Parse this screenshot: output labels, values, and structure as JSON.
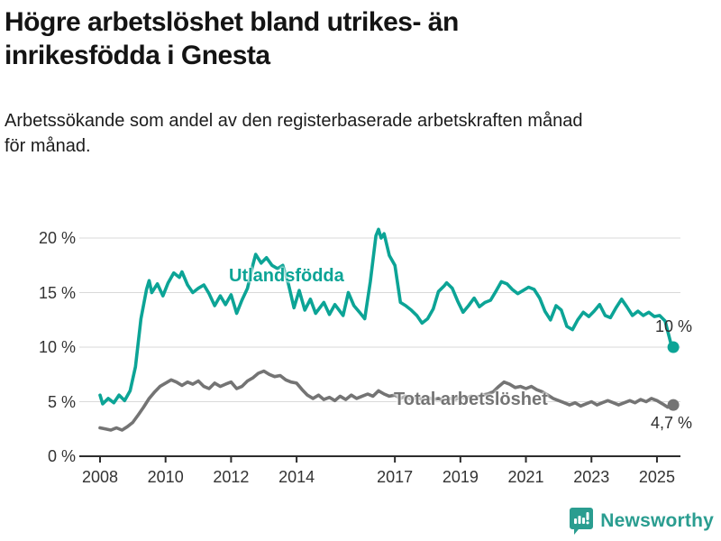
{
  "header": {
    "title_line1": "Högre arbetslöshet bland utrikes- än",
    "title_line2": "inrikesfödda i Gnesta",
    "subtitle_line1": "Arbetssökande som andel av den registerbaserade arbetskraften månad",
    "subtitle_line2": "för månad."
  },
  "footer": {
    "brand": "Newsworthy",
    "brand_color": "#2a9d90"
  },
  "chart_data": {
    "type": "line",
    "title": "Högre arbetslöshet bland utrikes- än inrikesfödda i Gnesta",
    "subtitle": "Arbetssökande som andel av den registerbaserade arbetskraften månad för månad.",
    "x_unit": "year (monthly series)",
    "y_unit": "percent",
    "xlim": [
      2007.4,
      2025.75
    ],
    "ylim": [
      0,
      21.5
    ],
    "grid": true,
    "legend_position": "inline labels on lines",
    "grid_color": "#d9d9d9",
    "axis_color": "#2d2d2d",
    "tick_label_color": "#333333",
    "yticks": [
      {
        "value": 0,
        "label": "0 %"
      },
      {
        "value": 5,
        "label": "5 %"
      },
      {
        "value": 10,
        "label": "10 %"
      },
      {
        "value": 15,
        "label": "15 %"
      },
      {
        "value": 20,
        "label": "20 %"
      }
    ],
    "xticks": [
      {
        "year": 2008,
        "label": "2008"
      },
      {
        "year": 2010,
        "label": "2010"
      },
      {
        "year": 2012,
        "label": "2012"
      },
      {
        "year": 2014,
        "label": "2014"
      },
      {
        "year": 2017,
        "label": "2017"
      },
      {
        "year": 2019,
        "label": "2019"
      },
      {
        "year": 2021,
        "label": "2021"
      },
      {
        "year": 2023,
        "label": "2023"
      },
      {
        "year": 2025,
        "label": "2025"
      }
    ],
    "series": [
      {
        "name": "Utlandsfödda",
        "color": "#0ca496",
        "end_label": "10 %",
        "end_value": 10.0,
        "points": [
          [
            2008.0,
            5.6
          ],
          [
            2008.08,
            4.8
          ],
          [
            2008.25,
            5.3
          ],
          [
            2008.42,
            4.9
          ],
          [
            2008.58,
            5.6
          ],
          [
            2008.75,
            5.1
          ],
          [
            2008.92,
            6.0
          ],
          [
            2009.08,
            8.2
          ],
          [
            2009.25,
            12.6
          ],
          [
            2009.42,
            15.3
          ],
          [
            2009.5,
            16.1
          ],
          [
            2009.58,
            15.0
          ],
          [
            2009.75,
            15.8
          ],
          [
            2009.92,
            14.7
          ],
          [
            2010.08,
            15.9
          ],
          [
            2010.25,
            16.8
          ],
          [
            2010.42,
            16.4
          ],
          [
            2010.5,
            16.9
          ],
          [
            2010.67,
            15.7
          ],
          [
            2010.83,
            15.0
          ],
          [
            2011.0,
            15.4
          ],
          [
            2011.17,
            15.7
          ],
          [
            2011.33,
            14.9
          ],
          [
            2011.5,
            13.8
          ],
          [
            2011.67,
            14.7
          ],
          [
            2011.83,
            13.9
          ],
          [
            2012.0,
            14.8
          ],
          [
            2012.17,
            13.1
          ],
          [
            2012.33,
            14.3
          ],
          [
            2012.5,
            15.4
          ],
          [
            2012.67,
            17.6
          ],
          [
            2012.75,
            18.5
          ],
          [
            2012.92,
            17.7
          ],
          [
            2013.08,
            18.2
          ],
          [
            2013.25,
            17.5
          ],
          [
            2013.42,
            17.2
          ],
          [
            2013.58,
            17.5
          ],
          [
            2013.75,
            15.8
          ],
          [
            2013.92,
            13.6
          ],
          [
            2014.08,
            15.2
          ],
          [
            2014.25,
            13.4
          ],
          [
            2014.42,
            14.4
          ],
          [
            2014.58,
            13.1
          ],
          [
            2014.83,
            14.1
          ],
          [
            2015.0,
            13.0
          ],
          [
            2015.17,
            13.9
          ],
          [
            2015.42,
            12.9
          ],
          [
            2015.58,
            15.0
          ],
          [
            2015.75,
            13.8
          ],
          [
            2015.92,
            13.2
          ],
          [
            2016.08,
            12.6
          ],
          [
            2016.25,
            16.0
          ],
          [
            2016.42,
            20.2
          ],
          [
            2016.5,
            20.8
          ],
          [
            2016.58,
            20.0
          ],
          [
            2016.67,
            20.4
          ],
          [
            2016.83,
            18.4
          ],
          [
            2017.0,
            17.5
          ],
          [
            2017.17,
            14.1
          ],
          [
            2017.33,
            13.8
          ],
          [
            2017.5,
            13.4
          ],
          [
            2017.67,
            12.9
          ],
          [
            2017.83,
            12.2
          ],
          [
            2018.0,
            12.6
          ],
          [
            2018.17,
            13.5
          ],
          [
            2018.33,
            15.1
          ],
          [
            2018.5,
            15.6
          ],
          [
            2018.58,
            15.9
          ],
          [
            2018.75,
            15.4
          ],
          [
            2018.92,
            14.2
          ],
          [
            2019.08,
            13.2
          ],
          [
            2019.25,
            13.8
          ],
          [
            2019.42,
            14.5
          ],
          [
            2019.58,
            13.7
          ],
          [
            2019.75,
            14.1
          ],
          [
            2019.92,
            14.3
          ],
          [
            2020.08,
            15.1
          ],
          [
            2020.25,
            16.0
          ],
          [
            2020.42,
            15.8
          ],
          [
            2020.58,
            15.3
          ],
          [
            2020.75,
            14.9
          ],
          [
            2020.92,
            15.2
          ],
          [
            2021.08,
            15.5
          ],
          [
            2021.25,
            15.3
          ],
          [
            2021.42,
            14.5
          ],
          [
            2021.58,
            13.3
          ],
          [
            2021.75,
            12.5
          ],
          [
            2021.92,
            13.8
          ],
          [
            2022.08,
            13.4
          ],
          [
            2022.25,
            11.9
          ],
          [
            2022.42,
            11.6
          ],
          [
            2022.58,
            12.5
          ],
          [
            2022.75,
            13.2
          ],
          [
            2022.92,
            12.8
          ],
          [
            2023.08,
            13.3
          ],
          [
            2023.25,
            13.9
          ],
          [
            2023.42,
            12.9
          ],
          [
            2023.58,
            12.7
          ],
          [
            2023.75,
            13.6
          ],
          [
            2023.92,
            14.4
          ],
          [
            2024.08,
            13.7
          ],
          [
            2024.25,
            12.9
          ],
          [
            2024.42,
            13.3
          ],
          [
            2024.58,
            12.9
          ],
          [
            2024.75,
            13.2
          ],
          [
            2024.92,
            12.8
          ],
          [
            2025.08,
            12.9
          ],
          [
            2025.25,
            12.4
          ],
          [
            2025.42,
            10.4
          ],
          [
            2025.5,
            10.0
          ]
        ]
      },
      {
        "name": "Total arbetslöshet",
        "color": "#747474",
        "end_label": "4,7 %",
        "end_value": 4.7,
        "points": [
          [
            2008.0,
            2.6
          ],
          [
            2008.17,
            2.5
          ],
          [
            2008.33,
            2.4
          ],
          [
            2008.5,
            2.6
          ],
          [
            2008.67,
            2.4
          ],
          [
            2008.83,
            2.7
          ],
          [
            2009.0,
            3.1
          ],
          [
            2009.17,
            3.8
          ],
          [
            2009.33,
            4.5
          ],
          [
            2009.5,
            5.3
          ],
          [
            2009.67,
            5.9
          ],
          [
            2009.83,
            6.4
          ],
          [
            2010.0,
            6.7
          ],
          [
            2010.17,
            7.0
          ],
          [
            2010.33,
            6.8
          ],
          [
            2010.5,
            6.5
          ],
          [
            2010.67,
            6.8
          ],
          [
            2010.83,
            6.6
          ],
          [
            2011.0,
            6.9
          ],
          [
            2011.17,
            6.4
          ],
          [
            2011.33,
            6.2
          ],
          [
            2011.5,
            6.7
          ],
          [
            2011.67,
            6.4
          ],
          [
            2011.83,
            6.6
          ],
          [
            2012.0,
            6.8
          ],
          [
            2012.17,
            6.2
          ],
          [
            2012.33,
            6.4
          ],
          [
            2012.5,
            6.9
          ],
          [
            2012.67,
            7.2
          ],
          [
            2012.83,
            7.6
          ],
          [
            2013.0,
            7.8
          ],
          [
            2013.17,
            7.5
          ],
          [
            2013.33,
            7.3
          ],
          [
            2013.5,
            7.4
          ],
          [
            2013.67,
            7.0
          ],
          [
            2013.83,
            6.8
          ],
          [
            2014.0,
            6.7
          ],
          [
            2014.17,
            6.1
          ],
          [
            2014.33,
            5.6
          ],
          [
            2014.5,
            5.3
          ],
          [
            2014.67,
            5.6
          ],
          [
            2014.83,
            5.2
          ],
          [
            2015.0,
            5.4
          ],
          [
            2015.17,
            5.1
          ],
          [
            2015.33,
            5.5
          ],
          [
            2015.5,
            5.2
          ],
          [
            2015.67,
            5.6
          ],
          [
            2015.83,
            5.3
          ],
          [
            2016.0,
            5.5
          ],
          [
            2016.17,
            5.7
          ],
          [
            2016.33,
            5.5
          ],
          [
            2016.5,
            6.0
          ],
          [
            2016.67,
            5.7
          ],
          [
            2016.83,
            5.5
          ],
          [
            2017.0,
            5.6
          ],
          [
            2017.17,
            5.3
          ],
          [
            2017.33,
            5.5
          ],
          [
            2017.5,
            5.2
          ],
          [
            2017.67,
            5.4
          ],
          [
            2017.83,
            5.2
          ],
          [
            2018.0,
            5.4
          ],
          [
            2018.17,
            5.2
          ],
          [
            2018.33,
            5.3
          ],
          [
            2018.5,
            5.1
          ],
          [
            2018.67,
            5.3
          ],
          [
            2018.83,
            5.2
          ],
          [
            2019.0,
            5.4
          ],
          [
            2019.17,
            5.3
          ],
          [
            2019.33,
            5.5
          ],
          [
            2019.5,
            5.4
          ],
          [
            2019.67,
            5.6
          ],
          [
            2019.83,
            5.7
          ],
          [
            2020.0,
            5.9
          ],
          [
            2020.17,
            6.4
          ],
          [
            2020.33,
            6.8
          ],
          [
            2020.5,
            6.6
          ],
          [
            2020.67,
            6.3
          ],
          [
            2020.83,
            6.4
          ],
          [
            2021.0,
            6.2
          ],
          [
            2021.17,
            6.4
          ],
          [
            2021.33,
            6.1
          ],
          [
            2021.5,
            5.9
          ],
          [
            2021.67,
            5.6
          ],
          [
            2021.83,
            5.3
          ],
          [
            2022.0,
            5.1
          ],
          [
            2022.17,
            4.9
          ],
          [
            2022.33,
            4.7
          ],
          [
            2022.5,
            4.9
          ],
          [
            2022.67,
            4.6
          ],
          [
            2022.83,
            4.8
          ],
          [
            2023.0,
            5.0
          ],
          [
            2023.17,
            4.7
          ],
          [
            2023.33,
            4.9
          ],
          [
            2023.5,
            5.1
          ],
          [
            2023.67,
            4.9
          ],
          [
            2023.83,
            4.7
          ],
          [
            2024.0,
            4.9
          ],
          [
            2024.17,
            5.1
          ],
          [
            2024.33,
            4.9
          ],
          [
            2024.5,
            5.2
          ],
          [
            2024.67,
            5.0
          ],
          [
            2024.83,
            5.3
          ],
          [
            2025.0,
            5.1
          ],
          [
            2025.17,
            4.8
          ],
          [
            2025.33,
            4.5
          ],
          [
            2025.5,
            4.7
          ]
        ]
      }
    ]
  }
}
